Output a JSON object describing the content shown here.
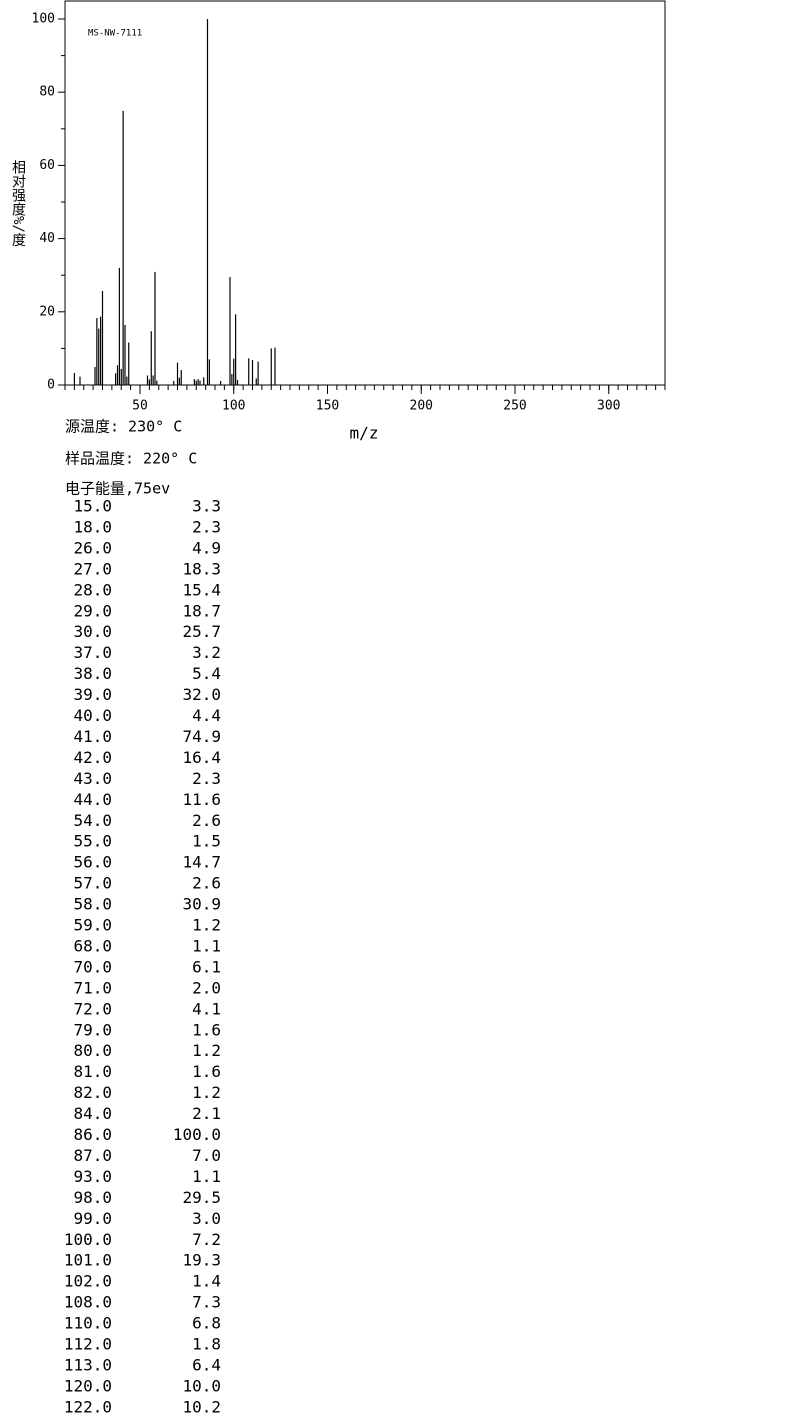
{
  "chart_data": {
    "type": "stem",
    "title": "MS-NW-7111",
    "xlabel": "m/z",
    "ylabel": "相对强度%/度",
    "xlim": [
      10,
      330
    ],
    "xticks": [
      50,
      100,
      150,
      200,
      250,
      300
    ],
    "ylim": [
      0,
      100
    ],
    "yticks": [
      0,
      20,
      40,
      60,
      80,
      100
    ],
    "color": "#000000",
    "x": [
      15,
      18,
      26,
      27,
      28,
      29,
      30,
      37,
      38,
      39,
      40,
      41,
      42,
      43,
      44,
      54,
      55,
      56,
      57,
      58,
      59,
      68,
      70,
      71,
      72,
      79,
      80,
      81,
      82,
      84,
      86,
      87,
      93,
      98,
      99,
      100,
      101,
      102,
      108,
      110,
      112,
      113,
      120,
      122
    ],
    "x_labels": [
      "15.0",
      "18.0",
      "26.0",
      "27.0",
      "28.0",
      "29.0",
      "30.0",
      "37.0",
      "38.0",
      "39.0",
      "40.0",
      "41.0",
      "42.0",
      "43.0",
      "44.0",
      "54.0",
      "55.0",
      "56.0",
      "57.0",
      "58.0",
      "59.0",
      "68.0",
      "70.0",
      "71.0",
      "72.0",
      "79.0",
      "80.0",
      "81.0",
      "82.0",
      "84.0",
      "86.0",
      "87.0",
      "93.0",
      "98.0",
      "99.0",
      "100.0",
      "101.0",
      "102.0",
      "108.0",
      "110.0",
      "112.0",
      "113.0",
      "120.0",
      "122.0"
    ],
    "values": [
      3.3,
      2.3,
      4.9,
      18.3,
      15.4,
      18.7,
      25.7,
      3.2,
      5.4,
      32,
      4.4,
      74.9,
      16.4,
      2.3,
      11.6,
      2.6,
      1.5,
      14.7,
      2.6,
      30.9,
      1.2,
      1.1,
      6.1,
      2,
      4.1,
      1.6,
      1.2,
      1.6,
      1.2,
      2.1,
      100,
      7,
      1.1,
      29.5,
      3,
      7.2,
      19.3,
      1.4,
      7.3,
      6.8,
      1.8,
      6.4,
      10,
      10.2
    ],
    "value_labels": [
      "3.3",
      "2.3",
      "4.9",
      "18.3",
      "15.4",
      "18.7",
      "25.7",
      "3.2",
      "5.4",
      "32.0",
      "4.4",
      "74.9",
      "16.4",
      "2.3",
      "11.6",
      "2.6",
      "1.5",
      "14.7",
      "2.6",
      "30.9",
      "1.2",
      "1.1",
      "6.1",
      "2.0",
      "4.1",
      "1.6",
      "1.2",
      "1.6",
      "1.2",
      "2.1",
      "100.0",
      "7.0",
      "1.1",
      "29.5",
      "3.0",
      "7.2",
      "19.3",
      "1.4",
      "7.3",
      "6.8",
      "1.8",
      "6.4",
      "10.0",
      "10.2"
    ]
  },
  "annotations": [
    "源温度: 230° C",
    "样品温度: 220° C",
    "电子能量,75ev"
  ]
}
